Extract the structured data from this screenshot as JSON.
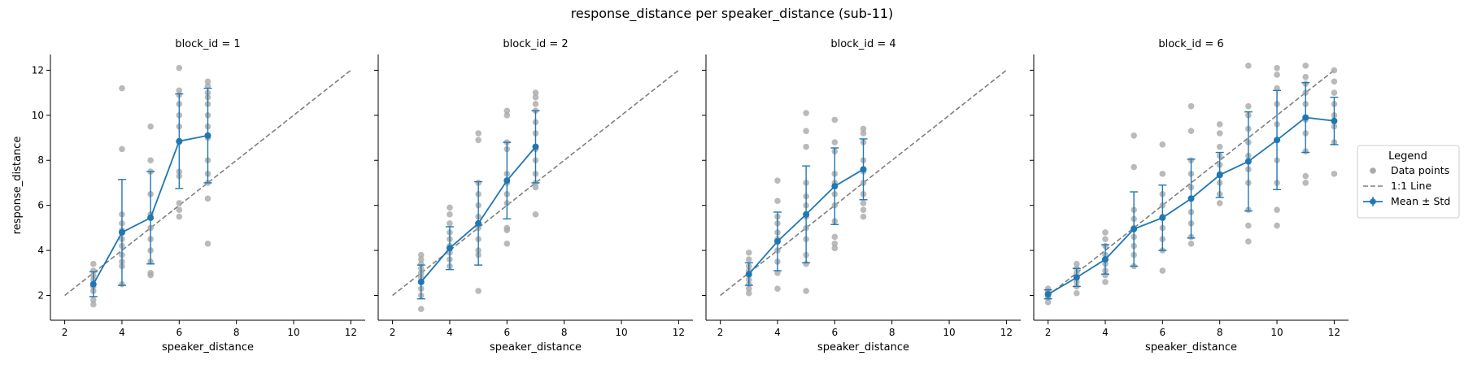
{
  "figure": {
    "title": "response_distance per speaker_distance (sub-11)",
    "xlabel": "speaker_distance",
    "ylabel": "response_distance"
  },
  "legend": {
    "title": "Legend",
    "entries": [
      {
        "label": "Data points",
        "kind": "points"
      },
      {
        "label": "1:1 Line",
        "kind": "dashed"
      },
      {
        "label": "Mean ± Std",
        "kind": "errorbar"
      }
    ],
    "placement": "right"
  },
  "colors": {
    "points": "#a9a9a9",
    "mean": "#1f77b4",
    "identity": "#7f7f7f",
    "axis": "#000000"
  },
  "chart_data": [
    {
      "type": "scatter",
      "title": "block_id = 1",
      "xlim": [
        1.5,
        12.5
      ],
      "ylim": [
        0.9,
        12.7
      ],
      "xticks": [
        2,
        4,
        6,
        8,
        10,
        12
      ],
      "yticks": [
        2,
        4,
        6,
        8,
        10,
        12
      ],
      "series": [
        {
          "name": "Mean ± Std",
          "x": [
            3,
            4,
            5,
            6,
            7
          ],
          "mean": [
            2.5,
            4.8,
            5.45,
            8.85,
            9.1
          ],
          "std": [
            0.55,
            2.35,
            2.05,
            2.1,
            2.1
          ]
        }
      ],
      "points": [
        [
          3,
          1.6
        ],
        [
          3,
          1.8
        ],
        [
          3,
          2.2
        ],
        [
          3,
          2.4
        ],
        [
          3,
          2.5
        ],
        [
          3,
          2.7
        ],
        [
          3,
          2.9
        ],
        [
          3,
          3.1
        ],
        [
          3,
          3.4
        ],
        [
          4,
          2.5
        ],
        [
          4,
          3.3
        ],
        [
          4,
          3.5
        ],
        [
          4,
          3.8
        ],
        [
          4,
          4.2
        ],
        [
          4,
          4.5
        ],
        [
          4,
          4.9
        ],
        [
          4,
          5.2
        ],
        [
          4,
          5.6
        ],
        [
          4,
          8.5
        ],
        [
          4,
          11.2
        ],
        [
          5,
          2.9
        ],
        [
          5,
          3.0
        ],
        [
          5,
          3.5
        ],
        [
          5,
          4.0
        ],
        [
          5,
          4.5
        ],
        [
          5,
          5.0
        ],
        [
          5,
          5.6
        ],
        [
          5,
          6.5
        ],
        [
          5,
          7.5
        ],
        [
          5,
          8.0
        ],
        [
          5,
          9.5
        ],
        [
          6,
          5.5
        ],
        [
          6,
          5.8
        ],
        [
          6,
          6.1
        ],
        [
          6,
          7.3
        ],
        [
          6,
          7.5
        ],
        [
          6,
          8.8
        ],
        [
          6,
          9.5
        ],
        [
          6,
          10.0
        ],
        [
          6,
          10.5
        ],
        [
          6,
          10.9
        ],
        [
          6,
          11.1
        ],
        [
          6,
          12.1
        ],
        [
          7,
          4.3
        ],
        [
          7,
          6.3
        ],
        [
          7,
          7.0
        ],
        [
          7,
          7.4
        ],
        [
          7,
          8.0
        ],
        [
          7,
          9.0
        ],
        [
          7,
          9.5
        ],
        [
          7,
          10.0
        ],
        [
          7,
          10.5
        ],
        [
          7,
          10.8
        ],
        [
          7,
          11.0
        ],
        [
          7,
          11.3
        ],
        [
          7,
          11.5
        ]
      ],
      "identity": [
        [
          2,
          2
        ],
        [
          12,
          12
        ]
      ]
    },
    {
      "type": "scatter",
      "title": "block_id = 2",
      "xlim": [
        1.5,
        12.5
      ],
      "ylim": [
        0.9,
        12.7
      ],
      "xticks": [
        2,
        4,
        6,
        8,
        10,
        12
      ],
      "yticks": [],
      "series": [
        {
          "name": "Mean ± Std",
          "x": [
            3,
            4,
            5,
            6,
            7
          ],
          "mean": [
            2.6,
            4.1,
            5.2,
            7.1,
            8.6
          ],
          "std": [
            0.75,
            0.95,
            1.85,
            1.7,
            1.6
          ]
        }
      ],
      "points": [
        [
          3,
          1.4
        ],
        [
          3,
          2.0
        ],
        [
          3,
          2.3
        ],
        [
          3,
          2.6
        ],
        [
          3,
          2.8
        ],
        [
          3,
          3.0
        ],
        [
          3,
          3.2
        ],
        [
          3,
          3.4
        ],
        [
          3,
          3.6
        ],
        [
          3,
          3.8
        ],
        [
          4,
          3.3
        ],
        [
          4,
          3.6
        ],
        [
          4,
          3.9
        ],
        [
          4,
          4.2
        ],
        [
          4,
          4.5
        ],
        [
          4,
          4.8
        ],
        [
          4,
          5.2
        ],
        [
          4,
          5.6
        ],
        [
          4,
          5.9
        ],
        [
          5,
          2.2
        ],
        [
          5,
          3.8
        ],
        [
          5,
          4.0
        ],
        [
          5,
          4.5
        ],
        [
          5,
          5.0
        ],
        [
          5,
          5.5
        ],
        [
          5,
          6.0
        ],
        [
          5,
          6.5
        ],
        [
          5,
          7.0
        ],
        [
          5,
          8.9
        ],
        [
          5,
          9.2
        ],
        [
          6,
          4.3
        ],
        [
          6,
          4.9
        ],
        [
          6,
          5.0
        ],
        [
          6,
          6.1
        ],
        [
          6,
          6.5
        ],
        [
          6,
          7.0
        ],
        [
          6,
          7.4
        ],
        [
          6,
          8.5
        ],
        [
          6,
          8.8
        ],
        [
          6,
          10.0
        ],
        [
          6,
          10.2
        ],
        [
          7,
          5.6
        ],
        [
          7,
          6.8
        ],
        [
          7,
          7.0
        ],
        [
          7,
          7.4
        ],
        [
          7,
          8.0
        ],
        [
          7,
          8.5
        ],
        [
          7,
          9.2
        ],
        [
          7,
          9.7
        ],
        [
          7,
          10.2
        ],
        [
          7,
          10.5
        ],
        [
          7,
          10.8
        ],
        [
          7,
          11.0
        ]
      ],
      "identity": [
        [
          2,
          2
        ],
        [
          12,
          12
        ]
      ]
    },
    {
      "type": "scatter",
      "title": "block_id = 4",
      "xlim": [
        1.5,
        12.5
      ],
      "ylim": [
        0.9,
        12.7
      ],
      "xticks": [
        2,
        4,
        6,
        8,
        10,
        12
      ],
      "yticks": [],
      "series": [
        {
          "name": "Mean ± Std",
          "x": [
            3,
            4,
            5,
            6,
            7
          ],
          "mean": [
            2.95,
            4.4,
            5.6,
            6.85,
            7.6
          ],
          "std": [
            0.5,
            1.3,
            2.15,
            1.7,
            1.35
          ]
        }
      ],
      "points": [
        [
          3,
          2.1
        ],
        [
          3,
          2.3
        ],
        [
          3,
          2.5
        ],
        [
          3,
          2.7
        ],
        [
          3,
          2.9
        ],
        [
          3,
          3.1
        ],
        [
          3,
          3.3
        ],
        [
          3,
          3.6
        ],
        [
          3,
          3.9
        ],
        [
          4,
          2.3
        ],
        [
          4,
          3.0
        ],
        [
          4,
          3.5
        ],
        [
          4,
          4.0
        ],
        [
          4,
          4.5
        ],
        [
          4,
          4.8
        ],
        [
          4,
          5.2
        ],
        [
          4,
          5.5
        ],
        [
          4,
          6.2
        ],
        [
          4,
          7.1
        ],
        [
          5,
          2.2
        ],
        [
          5,
          3.4
        ],
        [
          5,
          3.8
        ],
        [
          5,
          4.5
        ],
        [
          5,
          5.0
        ],
        [
          5,
          5.5
        ],
        [
          5,
          6.0
        ],
        [
          5,
          6.4
        ],
        [
          5,
          7.0
        ],
        [
          5,
          8.6
        ],
        [
          5,
          9.3
        ],
        [
          5,
          10.1
        ],
        [
          6,
          4.1
        ],
        [
          6,
          4.3
        ],
        [
          6,
          4.6
        ],
        [
          6,
          5.3
        ],
        [
          6,
          6.0
        ],
        [
          6,
          6.5
        ],
        [
          6,
          7.0
        ],
        [
          6,
          7.4
        ],
        [
          6,
          8.4
        ],
        [
          6,
          8.8
        ],
        [
          6,
          9.8
        ],
        [
          7,
          5.5
        ],
        [
          7,
          5.8
        ],
        [
          7,
          6.1
        ],
        [
          7,
          6.5
        ],
        [
          7,
          7.0
        ],
        [
          7,
          7.5
        ],
        [
          7,
          8.0
        ],
        [
          7,
          8.8
        ],
        [
          7,
          9.2
        ],
        [
          7,
          9.4
        ]
      ],
      "identity": [
        [
          2,
          2
        ],
        [
          12,
          12
        ]
      ]
    },
    {
      "type": "scatter",
      "title": "block_id = 6",
      "xlim": [
        1.5,
        12.5
      ],
      "ylim": [
        0.9,
        12.7
      ],
      "xticks": [
        2,
        4,
        6,
        8,
        10,
        12
      ],
      "yticks": [],
      "series": [
        {
          "name": "Mean ± Std",
          "x": [
            2,
            3,
            4,
            5,
            6,
            7,
            8,
            9,
            10,
            11,
            12
          ],
          "mean": [
            2.05,
            2.8,
            3.6,
            4.95,
            5.45,
            6.3,
            7.35,
            7.95,
            8.9,
            9.9,
            9.75
          ],
          "std": [
            0.2,
            0.4,
            0.65,
            1.65,
            1.45,
            1.75,
            1.0,
            2.2,
            2.2,
            1.55,
            1.05
          ]
        }
      ],
      "points": [
        [
          2,
          1.7
        ],
        [
          2,
          1.9
        ],
        [
          2,
          2.0
        ],
        [
          2,
          2.1
        ],
        [
          2,
          2.2
        ],
        [
          2,
          2.3
        ],
        [
          3,
          2.1
        ],
        [
          3,
          2.4
        ],
        [
          3,
          2.6
        ],
        [
          3,
          2.8
        ],
        [
          3,
          3.0
        ],
        [
          3,
          3.2
        ],
        [
          3,
          3.4
        ],
        [
          4,
          2.6
        ],
        [
          4,
          2.9
        ],
        [
          4,
          3.1
        ],
        [
          4,
          3.4
        ],
        [
          4,
          3.6
        ],
        [
          4,
          3.8
        ],
        [
          4,
          4.2
        ],
        [
          4,
          4.5
        ],
        [
          4,
          4.8
        ],
        [
          5,
          3.3
        ],
        [
          5,
          3.8
        ],
        [
          5,
          4.2
        ],
        [
          5,
          4.6
        ],
        [
          5,
          5.0
        ],
        [
          5,
          5.4
        ],
        [
          5,
          5.8
        ],
        [
          5,
          7.7
        ],
        [
          5,
          9.1
        ],
        [
          6,
          3.1
        ],
        [
          6,
          4.0
        ],
        [
          6,
          4.5
        ],
        [
          6,
          5.0
        ],
        [
          6,
          5.5
        ],
        [
          6,
          6.0
        ],
        [
          6,
          6.5
        ],
        [
          6,
          7.4
        ],
        [
          6,
          8.7
        ],
        [
          7,
          4.3
        ],
        [
          7,
          4.6
        ],
        [
          7,
          5.2
        ],
        [
          7,
          5.7
        ],
        [
          7,
          6.3
        ],
        [
          7,
          6.8
        ],
        [
          7,
          7.4
        ],
        [
          7,
          8.0
        ],
        [
          7,
          9.3
        ],
        [
          7,
          10.4
        ],
        [
          8,
          6.1
        ],
        [
          8,
          6.5
        ],
        [
          8,
          7.0
        ],
        [
          8,
          7.4
        ],
        [
          8,
          7.8
        ],
        [
          8,
          8.2
        ],
        [
          8,
          8.6
        ],
        [
          8,
          9.2
        ],
        [
          8,
          9.6
        ],
        [
          9,
          4.4
        ],
        [
          9,
          5.1
        ],
        [
          9,
          5.8
        ],
        [
          9,
          7.0
        ],
        [
          9,
          7.6
        ],
        [
          9,
          8.2
        ],
        [
          9,
          8.8
        ],
        [
          9,
          9.4
        ],
        [
          9,
          10.0
        ],
        [
          9,
          10.4
        ],
        [
          9,
          12.2
        ],
        [
          10,
          5.1
        ],
        [
          10,
          5.8
        ],
        [
          10,
          7.0
        ],
        [
          10,
          8.0
        ],
        [
          10,
          8.9
        ],
        [
          10,
          9.6
        ],
        [
          10,
          10.5
        ],
        [
          10,
          11.2
        ],
        [
          10,
          11.8
        ],
        [
          10,
          12.1
        ],
        [
          11,
          7.0
        ],
        [
          11,
          7.3
        ],
        [
          11,
          8.4
        ],
        [
          11,
          9.2
        ],
        [
          11,
          9.8
        ],
        [
          11,
          10.5
        ],
        [
          11,
          11.0
        ],
        [
          11,
          11.4
        ],
        [
          11,
          11.7
        ],
        [
          11,
          12.2
        ],
        [
          12,
          7.4
        ],
        [
          12,
          8.8
        ],
        [
          12,
          9.5
        ],
        [
          12,
          10.0
        ],
        [
          12,
          10.5
        ],
        [
          12,
          11.0
        ],
        [
          12,
          11.5
        ],
        [
          12,
          12.0
        ]
      ],
      "identity": [
        [
          2,
          2
        ],
        [
          12,
          12
        ]
      ]
    }
  ]
}
